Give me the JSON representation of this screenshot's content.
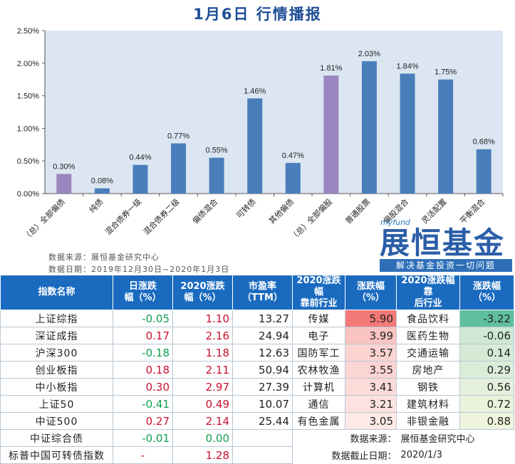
{
  "title": "1月6日  行情播报",
  "colors": {
    "bar": "#4a7ebb",
    "bar_highlight": "#9a86be",
    "plot_bg": "#dbe6f2",
    "header": "#1a6bbf"
  },
  "chart_data": {
    "type": "bar",
    "categories": [
      "（总）全部偏债",
      "纯债",
      "混合债券一级",
      "混合债券二级",
      "偏债混合",
      "可转债",
      "其他偏债",
      "（总）全部偏股",
      "普通股票",
      "偏股混合",
      "灵活配置",
      "平衡混合"
    ],
    "values": [
      0.3,
      0.08,
      0.44,
      0.77,
      0.55,
      1.46,
      0.47,
      1.81,
      2.03,
      1.84,
      1.75,
      0.68
    ],
    "data_labels": [
      "0.30%",
      "0.08%",
      "0.44%",
      "0.77%",
      "0.55%",
      "1.46%",
      "0.47%",
      "1.81%",
      "2.03%",
      "1.84%",
      "1.75%",
      "0.68%"
    ],
    "highlighted": [
      0,
      7
    ],
    "yticks": [
      "0.00%",
      "0.50%",
      "1.00%",
      "1.50%",
      "2.00%",
      "2.50%"
    ],
    "ylim": [
      0,
      2.5
    ],
    "grid": false
  },
  "source_line1": "数据来源：展恒基金研究中心",
  "source_line2": "数据日期：2019年12月30日~2020年1月3日",
  "logo": {
    "brand": "myfund",
    "name": "展恒基金",
    "slogan": "解决基金投资一切问题"
  },
  "table": {
    "headers": {
      "index": "指数名称",
      "day": [
        "日涨跌",
        "幅（%）"
      ],
      "ytd": [
        "2020涨跌",
        "幅（%）"
      ],
      "pe": [
        "市盈率",
        "（TTM）"
      ],
      "top_ind": [
        "2020涨跌幅",
        "靠前行业"
      ],
      "top_chg": [
        "涨跌幅",
        "（%）"
      ],
      "bot_ind": [
        "2020涨跌幅靠",
        "后行业"
      ],
      "bot_chg": [
        "涨跌幅",
        "（%）"
      ]
    },
    "rows": [
      {
        "name": "上证综指",
        "day": "-0.05",
        "ytd": "1.10",
        "pe": "13.27",
        "ind1": "传媒",
        "chg1": "5.90",
        "ind2": "食品饮料",
        "chg2": "-3.22"
      },
      {
        "name": "深证成指",
        "day": "0.17",
        "ytd": "2.16",
        "pe": "24.94",
        "ind1": "电子",
        "chg1": "3.99",
        "ind2": "医药生物",
        "chg2": "-0.06"
      },
      {
        "name": "沪深300",
        "day": "-0.18",
        "ytd": "1.18",
        "pe": "12.63",
        "ind1": "国防军工",
        "chg1": "3.57",
        "ind2": "交通运输",
        "chg2": "0.14"
      },
      {
        "name": "创业板指",
        "day": "0.18",
        "ytd": "2.11",
        "pe": "50.94",
        "ind1": "农林牧渔",
        "chg1": "3.55",
        "ind2": "房地产",
        "chg2": "0.29"
      },
      {
        "name": "中小板指",
        "day": "0.30",
        "ytd": "2.97",
        "pe": "27.39",
        "ind1": "计算机",
        "chg1": "3.41",
        "ind2": "钢铁",
        "chg2": "0.56"
      },
      {
        "name": "上证50",
        "day": "-0.41",
        "ytd": "0.49",
        "pe": "10.07",
        "ind1": "通信",
        "chg1": "3.21",
        "ind2": "建筑材料",
        "chg2": "0.72"
      },
      {
        "name": "中证500",
        "day": "0.27",
        "ytd": "2.14",
        "pe": "25.44",
        "ind1": "有色金属",
        "chg1": "3.05",
        "ind2": "非银金融",
        "chg2": "0.88"
      },
      {
        "name": "中证综合债",
        "day": "-0.01",
        "ytd": "0.00"
      },
      {
        "name": "标普中国可转债指数",
        "day": "-",
        "ytd": "1.28"
      }
    ],
    "footer1_label": "数据来源：",
    "footer1_value": "展恒基金研究中心",
    "footer2_label": "数据截止日期：",
    "footer2_value": "2020/1/3"
  }
}
